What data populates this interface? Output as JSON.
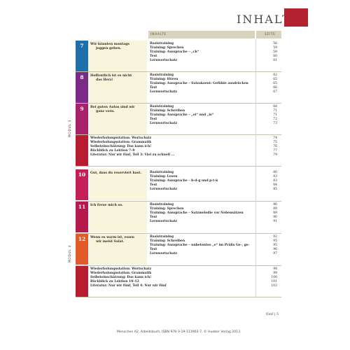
{
  "header": {
    "title": "INHALT",
    "col_inhalt": "INHALTE",
    "col_seite": "SEITE"
  },
  "modul3": {
    "label": "MODUL 3",
    "lessons": [
      {
        "num": "7",
        "color": "#1f6fa8",
        "topic": [
          "Wir könnten montags",
          "joggen gehen."
        ],
        "lines": [
          "Basistraining",
          "Training: Sprechen",
          "Training: Aussprache – „ch“",
          "Test",
          "Lernwortschatz"
        ],
        "pages": [
          "56",
          "59",
          "59",
          "60",
          "61"
        ]
      },
      {
        "num": "8",
        "color": "#7b2b87",
        "topic": [
          "Hoffentlich ist es nicht",
          "das Herz!"
        ],
        "lines": [
          "Basistraining",
          "Training: Hören",
          "Training: Aussprache – Satzakzent: Gefühle ausdrücken",
          "Test",
          "Lernwortschatz"
        ],
        "pages": [
          "62",
          "65",
          "65",
          "66",
          "67"
        ]
      },
      {
        "num": "9",
        "color": "#a8216a",
        "topic": [
          "Bei guten Autos sind wir",
          "ganz vorn."
        ],
        "lines": [
          "Basistraining",
          "Training: Schreiben",
          "Training: Aussprache – „ei“ und „ie“",
          "Test",
          "Lernwortschatz"
        ],
        "pages": [
          "68",
          "71",
          "71",
          "72",
          "73"
        ]
      }
    ],
    "review": {
      "lines": [
        "Wiederholungsstation: Wortschatz",
        "Wiederholungsstation: Grammatik",
        "Selbsteinschätzung: Das kann ich!",
        "Rückblick zu Lektion 7–9",
        "Literatur: Nur wir fünf, Teil 3: Viel zu schnell …"
      ],
      "pages": [
        "74",
        "75",
        "76",
        "77",
        "79"
      ]
    }
  },
  "modul4": {
    "label": "MODUL 4",
    "lessons": [
      {
        "num": "10",
        "color": "#c3205a",
        "topic": [
          "Gut, dass du reserviert hast."
        ],
        "lines": [
          "Basistraining",
          "Training: Lesen",
          "Training: Aussprache – b-d-g und p-t-k",
          "Test",
          "Lernwortschatz"
        ],
        "pages": [
          "80",
          "83",
          "83",
          "84",
          "85"
        ]
      },
      {
        "num": "11",
        "color": "#b51a4d",
        "topic": [
          "Ich freue mich so."
        ],
        "lines": [
          "Basistraining",
          "Training: Sprechen",
          "Training: Aussprache – Satzmelodie vor Nebensätzen",
          "Test",
          "Lernwortschatz"
        ],
        "pages": [
          "86",
          "89",
          "89",
          "90",
          "91"
        ]
      },
      {
        "num": "12",
        "color": "#e05a2a",
        "topic": [
          "Wenn es warm ist, essen",
          "wir meist Salat."
        ],
        "lines": [
          "Basistraining",
          "Training: Schreiben",
          "Training: Aussprache – unbetontes „e“ im Präfix Ge-, ge-",
          "Test",
          "Lernwortschatz"
        ],
        "pages": [
          "92",
          "95",
          "95",
          "96",
          "97"
        ]
      }
    ],
    "review": {
      "lines": [
        "Wiederholungsstation: Wortschatz",
        "Wiederholungsstation: Grammatik",
        "Selbsteinschätzung: Das kann ich!",
        "Rückblick zu Lektion 10–12",
        "Literatur: Nur wir fünf, Teil 4: Nur wir fünf"
      ],
      "pages": [
        "98",
        "99",
        "100",
        "101",
        "103"
      ]
    }
  },
  "footer": {
    "page": "fünf | 5",
    "credit": "Menschen A2, Arbeitsbuch, ISBN 978-3-19-111902-7, © Hueber Verlag 2013"
  },
  "colors": {
    "accent_red": "#b3232f",
    "header_band": "#d9d2bc",
    "topic_bg": "#f8f5dc",
    "review_strip": "#b81c31"
  }
}
